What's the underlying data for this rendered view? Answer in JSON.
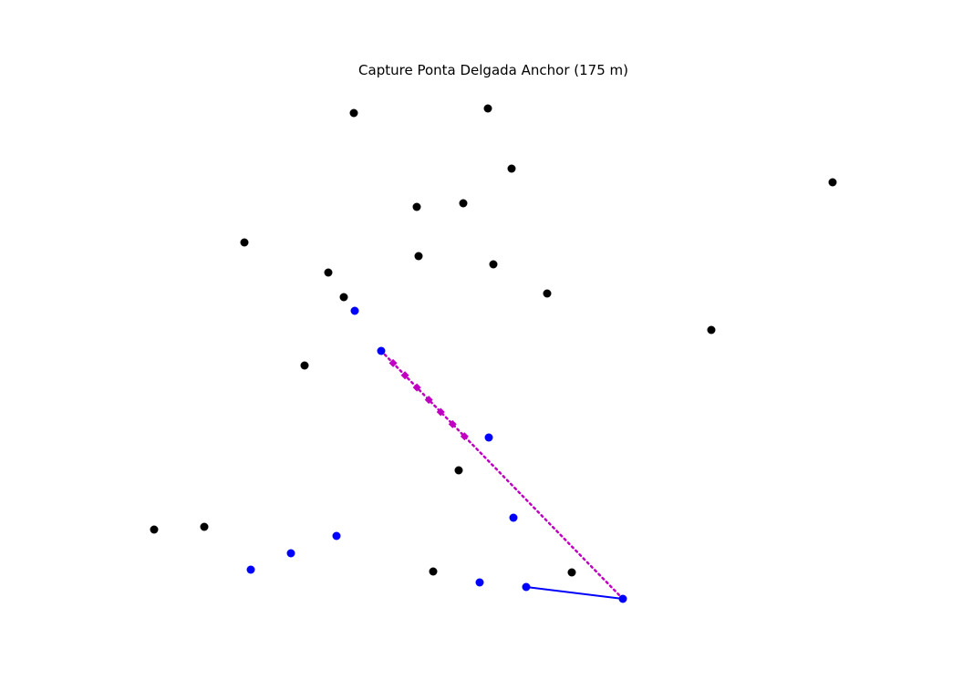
{
  "title": "Capture Ponta Delgada Anchor (175 m)",
  "colors": {
    "neutral": "#000000",
    "player": "#0000ff",
    "route": "#c000c0",
    "background": "#ffffff"
  },
  "neutral_nodes": [
    {
      "id": "n1"
    },
    {
      "id": "n2"
    },
    {
      "id": "n3"
    },
    {
      "id": "n4"
    },
    {
      "id": "n5"
    },
    {
      "id": "n6"
    },
    {
      "id": "n7"
    },
    {
      "id": "n8"
    },
    {
      "id": "n9"
    },
    {
      "id": "n10"
    },
    {
      "id": "n11"
    },
    {
      "id": "n12"
    },
    {
      "id": "n13"
    },
    {
      "id": "n14"
    },
    {
      "id": "n15"
    },
    {
      "id": "n16"
    },
    {
      "id": "n17"
    },
    {
      "id": "n18"
    },
    {
      "id": "n19"
    }
  ],
  "player_nodes": [
    {
      "id": "p1"
    },
    {
      "id": "p2"
    },
    {
      "id": "p3"
    },
    {
      "id": "p4"
    },
    {
      "id": "p5"
    },
    {
      "id": "p6"
    },
    {
      "id": "p7"
    },
    {
      "id": "p8"
    },
    {
      "id": "p9"
    },
    {
      "id": "p10"
    }
  ],
  "player_links": [
    {
      "from": "p9",
      "to": "p10"
    }
  ],
  "planned_route": {
    "from": "p10",
    "to": "p2",
    "waypoints": 7
  }
}
